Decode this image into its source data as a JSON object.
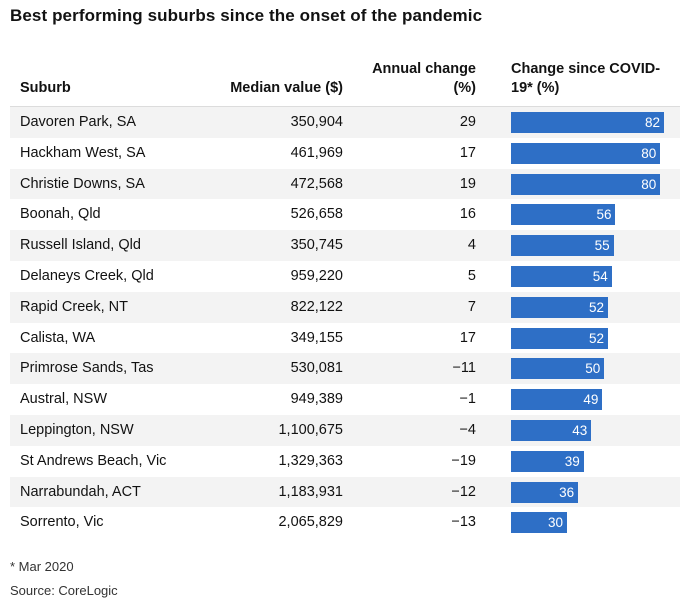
{
  "chart_data": {
    "type": "table",
    "title": "Best performing suburbs since the onset of the pandemic",
    "columns": [
      "Suburb",
      "Median value ($)",
      "Annual change (%)",
      "Change since COVID-19* (%)"
    ],
    "rows": [
      {
        "suburb": "Davoren Park, SA",
        "median": "350,904",
        "annual": "29",
        "change": 82
      },
      {
        "suburb": "Hackham West, SA",
        "median": "461,969",
        "annual": "17",
        "change": 80
      },
      {
        "suburb": "Christie Downs, SA",
        "median": "472,568",
        "annual": "19",
        "change": 80
      },
      {
        "suburb": "Boonah, Qld",
        "median": "526,658",
        "annual": "16",
        "change": 56
      },
      {
        "suburb": "Russell Island, Qld",
        "median": "350,745",
        "annual": "4",
        "change": 55
      },
      {
        "suburb": "Delaneys Creek, Qld",
        "median": "959,220",
        "annual": "5",
        "change": 54
      },
      {
        "suburb": "Rapid Creek, NT",
        "median": "822,122",
        "annual": "7",
        "change": 52
      },
      {
        "suburb": "Calista, WA",
        "median": "349,155",
        "annual": "17",
        "change": 52
      },
      {
        "suburb": "Primrose Sands, Tas",
        "median": "530,081",
        "annual": "−11",
        "change": 50
      },
      {
        "suburb": "Austral, NSW",
        "median": "949,389",
        "annual": "−1",
        "change": 49
      },
      {
        "suburb": "Leppington, NSW",
        "median": "1,100,675",
        "annual": "−4",
        "change": 43
      },
      {
        "suburb": "St Andrews Beach, Vic",
        "median": "1,329,363",
        "annual": "−19",
        "change": 39
      },
      {
        "suburb": "Narrabundah, ACT",
        "median": "1,183,931",
        "annual": "−12",
        "change": 36
      },
      {
        "suburb": "Sorrento, Vic",
        "median": "2,065,829",
        "annual": "−13",
        "change": 30
      }
    ],
    "bar_max": 82,
    "bar_color": "#2e6fc6",
    "row_alt_color": "#f3f3f3",
    "footnote": "* Mar 2020",
    "source": "Source: CoreLogic"
  }
}
